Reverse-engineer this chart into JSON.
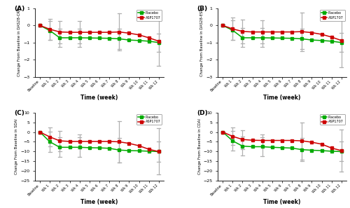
{
  "time_labels": [
    "Baseline",
    "Wk 1",
    "Wk 2",
    "Wk 3",
    "Wk 4",
    "Wk 5",
    "Wk 6",
    "Wk 7",
    "Wk 8",
    "Wk 9",
    "Wk 10",
    "Wk 11",
    "Wk 12"
  ],
  "time_x": [
    0,
    1,
    2,
    3,
    4,
    5,
    6,
    7,
    8,
    9,
    10,
    11,
    12
  ],
  "panels": [
    {
      "label": "A",
      "ylabel": "Change From Baseline in DAS28-CRP",
      "ylim": [
        -3,
        1
      ],
      "yticks": [
        -3,
        -2,
        -1,
        0,
        1
      ],
      "placebo_mean": [
        0.0,
        -0.3,
        -0.72,
        -0.72,
        -0.72,
        -0.73,
        -0.74,
        -0.75,
        -0.78,
        -0.85,
        -0.88,
        -0.92,
        -1.0
      ],
      "placebo_sd": [
        0.05,
        0.55,
        0.52,
        0.0,
        0.52,
        0.0,
        0.0,
        0.0,
        0.58,
        0.0,
        0.0,
        0.0,
        0.52
      ],
      "asp_mean": [
        0.0,
        -0.22,
        -0.38,
        -0.4,
        -0.4,
        -0.4,
        -0.4,
        -0.4,
        -0.38,
        -0.45,
        -0.55,
        -0.72,
        -0.92
      ],
      "asp_sd": [
        0.05,
        0.62,
        0.65,
        0.0,
        0.65,
        0.0,
        0.0,
        0.0,
        1.08,
        0.0,
        0.0,
        0.0,
        1.42
      ],
      "has_sd_at": [
        0,
        1,
        2,
        4,
        8,
        12
      ]
    },
    {
      "label": "B",
      "ylabel": "Change From Baseline in DAS28-ESR",
      "ylim": [
        -3,
        1
      ],
      "yticks": [
        -3,
        -2,
        -1,
        0,
        1
      ],
      "placebo_mean": [
        0.0,
        -0.28,
        -0.72,
        -0.72,
        -0.72,
        -0.73,
        -0.74,
        -0.75,
        -0.78,
        -0.85,
        -0.88,
        -0.92,
        -1.0
      ],
      "placebo_sd": [
        0.05,
        0.58,
        0.55,
        0.0,
        0.55,
        0.0,
        0.0,
        0.0,
        0.6,
        0.0,
        0.0,
        0.0,
        0.55
      ],
      "asp_mean": [
        0.0,
        -0.2,
        -0.35,
        -0.38,
        -0.38,
        -0.38,
        -0.38,
        -0.38,
        -0.36,
        -0.42,
        -0.52,
        -0.68,
        -0.88
      ],
      "asp_sd": [
        0.05,
        0.65,
        0.68,
        0.0,
        0.68,
        0.0,
        0.0,
        0.0,
        1.12,
        0.0,
        0.0,
        0.0,
        1.55
      ],
      "has_sd_at": [
        0,
        1,
        2,
        4,
        8,
        12
      ]
    },
    {
      "label": "C",
      "ylabel": "Change From Baseline in SDAI",
      "ylim": [
        -25,
        10
      ],
      "yticks": [
        -25,
        -20,
        -15,
        -10,
        -5,
        0,
        5,
        10
      ],
      "placebo_mean": [
        0.0,
        -5.0,
        -7.8,
        -7.8,
        -7.8,
        -8.0,
        -8.1,
        -8.3,
        -9.2,
        -9.5,
        -9.6,
        -9.8,
        -10.0
      ],
      "placebo_sd": [
        0.3,
        5.2,
        5.0,
        0.0,
        5.0,
        0.0,
        0.0,
        0.0,
        6.2,
        0.0,
        0.0,
        0.0,
        5.2
      ],
      "asp_mean": [
        0.0,
        -2.5,
        -4.5,
        -4.8,
        -4.8,
        -4.8,
        -4.8,
        -4.8,
        -5.0,
        -5.8,
        -7.0,
        -8.8,
        -10.0
      ],
      "asp_sd": [
        0.3,
        4.8,
        5.2,
        0.0,
        3.5,
        0.0,
        0.0,
        0.0,
        10.5,
        0.0,
        0.0,
        0.0,
        11.8
      ],
      "has_sd_at": [
        0,
        1,
        2,
        4,
        8,
        12
      ]
    },
    {
      "label": "D",
      "ylabel": "Change From Baseline in CDAI",
      "ylim": [
        -25,
        10
      ],
      "yticks": [
        -25,
        -20,
        -15,
        -10,
        -5,
        0,
        5,
        10
      ],
      "placebo_mean": [
        0.0,
        -4.5,
        -7.2,
        -7.5,
        -7.5,
        -7.8,
        -8.0,
        -8.2,
        -9.0,
        -9.3,
        -9.5,
        -9.8,
        -10.0
      ],
      "placebo_sd": [
        0.3,
        5.0,
        4.8,
        0.0,
        4.8,
        0.0,
        0.0,
        0.0,
        5.8,
        0.0,
        0.0,
        0.0,
        5.0
      ],
      "asp_mean": [
        0.0,
        -2.2,
        -3.8,
        -4.2,
        -4.3,
        -4.3,
        -4.3,
        -4.3,
        -4.5,
        -5.2,
        -6.2,
        -8.2,
        -9.5
      ],
      "asp_sd": [
        0.3,
        4.5,
        4.8,
        0.0,
        3.2,
        0.0,
        0.0,
        0.0,
        9.5,
        0.0,
        0.0,
        0.0,
        10.8
      ],
      "has_sd_at": [
        0,
        1,
        2,
        4,
        8,
        12
      ]
    }
  ],
  "placebo_color": "#00aa00",
  "asp_color": "#cc0000",
  "sd_color": "#b0b0b0",
  "background_color": "#ffffff",
  "xlabel": "Time (week)"
}
